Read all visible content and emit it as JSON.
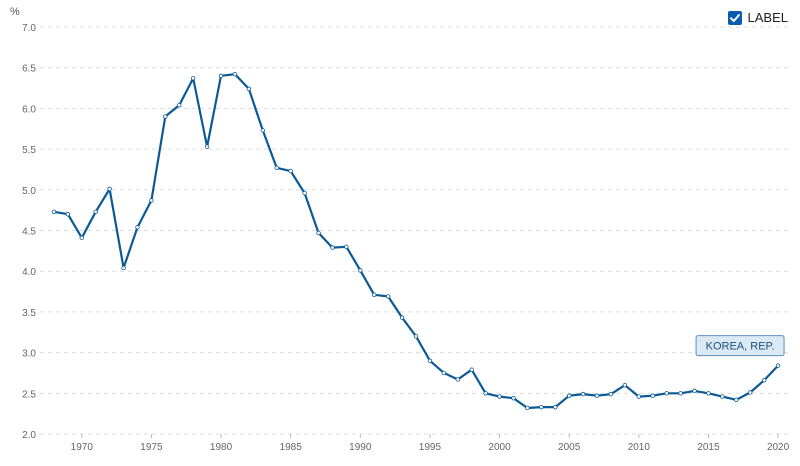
{
  "legend": {
    "label": "LABEL",
    "checked": true
  },
  "chart_data": {
    "type": "line",
    "unit": "%",
    "grid": true,
    "legend_position": "top-right",
    "x_ticks": [
      1970,
      1975,
      1980,
      1985,
      1990,
      1995,
      2000,
      2005,
      2010,
      2015,
      2020
    ],
    "y_ticks": [
      "2.0",
      "2.5",
      "3.0",
      "3.5",
      "4.0",
      "4.5",
      "5.0",
      "5.5",
      "6.0",
      "6.5",
      "7.0"
    ],
    "xlim": [
      1967,
      2021
    ],
    "ylim": [
      2.0,
      7.0
    ],
    "series": [
      {
        "name": "KOREA, REP.",
        "color": "#0b5a96",
        "x": [
          1968,
          1969,
          1970,
          1971,
          1972,
          1973,
          1974,
          1975,
          1976,
          1977,
          1978,
          1979,
          1980,
          1981,
          1982,
          1983,
          1984,
          1985,
          1986,
          1987,
          1988,
          1989,
          1990,
          1991,
          1992,
          1993,
          1994,
          1995,
          1996,
          1997,
          1998,
          1999,
          2000,
          2001,
          2002,
          2003,
          2004,
          2005,
          2006,
          2007,
          2008,
          2009,
          2010,
          2011,
          2012,
          2013,
          2014,
          2015,
          2016,
          2017,
          2018,
          2019,
          2020
        ],
        "y": [
          4.73,
          4.7,
          4.41,
          4.73,
          5.01,
          4.04,
          4.54,
          4.87,
          5.9,
          6.04,
          6.37,
          5.53,
          6.4,
          6.42,
          6.24,
          5.73,
          5.27,
          5.23,
          4.96,
          4.47,
          4.29,
          4.3,
          4.01,
          3.71,
          3.69,
          3.43,
          3.2,
          2.9,
          2.75,
          2.67,
          2.79,
          2.5,
          2.46,
          2.44,
          2.32,
          2.33,
          2.33,
          2.47,
          2.49,
          2.47,
          2.49,
          2.6,
          2.46,
          2.47,
          2.5,
          2.5,
          2.53,
          2.5,
          2.46,
          2.42,
          2.51,
          2.66,
          2.84
        ]
      }
    ]
  }
}
